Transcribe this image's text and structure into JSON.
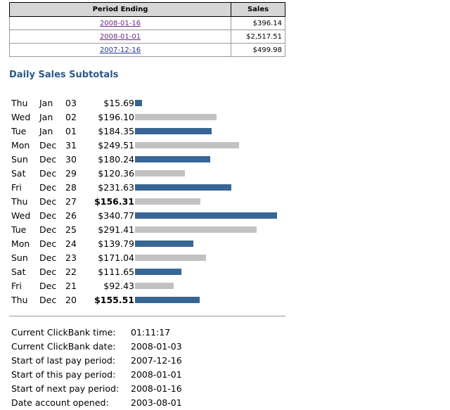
{
  "period_table": {
    "headers": {
      "period": "Period Ending",
      "sales": "Sales"
    },
    "rows": [
      {
        "date": "2008-01-16",
        "sales": "$396.14",
        "visited": true
      },
      {
        "date": "2008-01-01",
        "sales": "$2,517.51",
        "visited": true
      },
      {
        "date": "2007-12-16",
        "sales": "$499.98",
        "visited": false
      }
    ]
  },
  "daily": {
    "title": "Daily Sales Subtotals",
    "rows": [
      {
        "dow": "Thu",
        "mon": "Jan",
        "day": "03",
        "amount": "$15.69",
        "value": 15.69,
        "color": "blue",
        "bold": false
      },
      {
        "dow": "Wed",
        "mon": "Jan",
        "day": "02",
        "amount": "$196.10",
        "value": 196.1,
        "color": "gray",
        "bold": false
      },
      {
        "dow": "Tue",
        "mon": "Jan",
        "day": "01",
        "amount": "$184.35",
        "value": 184.35,
        "color": "blue",
        "bold": false
      },
      {
        "dow": "Mon",
        "mon": "Dec",
        "day": "31",
        "amount": "$249.51",
        "value": 249.51,
        "color": "gray",
        "bold": false
      },
      {
        "dow": "Sun",
        "mon": "Dec",
        "day": "30",
        "amount": "$180.24",
        "value": 180.24,
        "color": "blue",
        "bold": false
      },
      {
        "dow": "Sat",
        "mon": "Dec",
        "day": "29",
        "amount": "$120.36",
        "value": 120.36,
        "color": "gray",
        "bold": false
      },
      {
        "dow": "Fri",
        "mon": "Dec",
        "day": "28",
        "amount": "$231.63",
        "value": 231.63,
        "color": "blue",
        "bold": false
      },
      {
        "dow": "Thu",
        "mon": "Dec",
        "day": "27",
        "amount": "$156.31",
        "value": 156.31,
        "color": "gray",
        "bold": true
      },
      {
        "dow": "Wed",
        "mon": "Dec",
        "day": "26",
        "amount": "$340.77",
        "value": 340.77,
        "color": "blue",
        "bold": false
      },
      {
        "dow": "Tue",
        "mon": "Dec",
        "day": "25",
        "amount": "$291.41",
        "value": 291.41,
        "color": "gray",
        "bold": false
      },
      {
        "dow": "Mon",
        "mon": "Dec",
        "day": "24",
        "amount": "$139.79",
        "value": 139.79,
        "color": "blue",
        "bold": false
      },
      {
        "dow": "Sun",
        "mon": "Dec",
        "day": "23",
        "amount": "$171.04",
        "value": 171.04,
        "color": "gray",
        "bold": false
      },
      {
        "dow": "Sat",
        "mon": "Dec",
        "day": "22",
        "amount": "$111.65",
        "value": 111.65,
        "color": "blue",
        "bold": false
      },
      {
        "dow": "Fri",
        "mon": "Dec",
        "day": "21",
        "amount": "$92.43",
        "value": 92.43,
        "color": "gray",
        "bold": false
      },
      {
        "dow": "Thu",
        "mon": "Dec",
        "day": "20",
        "amount": "$155.51",
        "value": 155.51,
        "color": "blue",
        "bold": true
      }
    ]
  },
  "info": [
    {
      "label": "Current ClickBank time:",
      "value": "01:11:17"
    },
    {
      "label": "Current ClickBank date:",
      "value": "2008-01-03"
    },
    {
      "label": "Start of last pay period:",
      "value": "2007-12-16"
    },
    {
      "label": "Start of this pay period:",
      "value": "2008-01-01"
    },
    {
      "label": "Start of next pay period:",
      "value": "2008-01-16"
    },
    {
      "label": "Date account opened:",
      "value": "2003-08-01"
    }
  ],
  "colors": {
    "bar_blue": "#386694",
    "bar_gray": "#c2c2c2",
    "title": "#2a5a86",
    "link_visited": "#6b2a8a",
    "link": "#1f3a93"
  }
}
